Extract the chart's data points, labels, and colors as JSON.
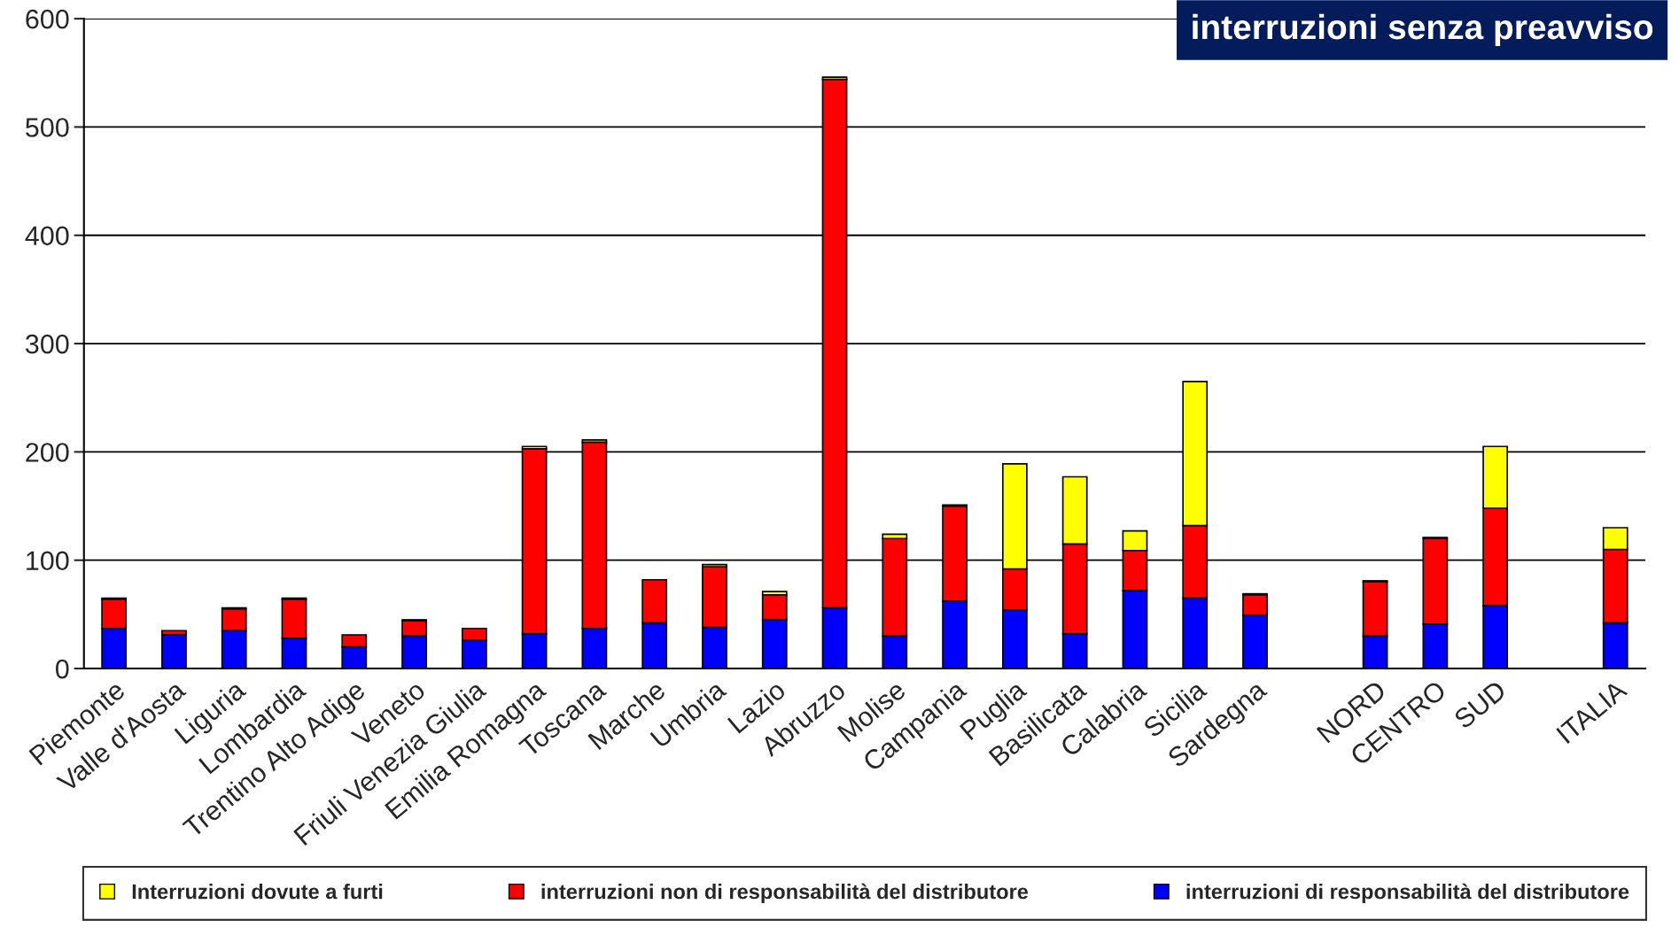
{
  "chart_data": {
    "type": "bar",
    "title": "interruzioni senza preavviso",
    "stacked": true,
    "categories": [
      "Piemonte",
      "Valle d'Aosta",
      "Liguria",
      "Lombardia",
      "Trentino Alto Adige",
      "Veneto",
      "Friuli Venezia Giulia",
      "Emilia Romagna",
      "Toscana",
      "Marche",
      "Umbria",
      "Lazio",
      "Abruzzo",
      "Molise",
      "Campania",
      "Puglia",
      "Basilicata",
      "Calabria",
      "Sicilia",
      "Sardegna",
      null,
      "NORD",
      "CENTRO",
      "SUD",
      null,
      "ITALIA"
    ],
    "series": [
      {
        "name": "interruzioni di responsabilità del distributore",
        "color": "#0000ff",
        "values": [
          37,
          31,
          35,
          28,
          20,
          30,
          26,
          32,
          37,
          42,
          38,
          45,
          56,
          30,
          62,
          54,
          32,
          72,
          65,
          49,
          null,
          30,
          41,
          58,
          null,
          42
        ]
      },
      {
        "name": "interruzioni non di responsabilità del distributore",
        "color": "#ff0000",
        "values": [
          27,
          4,
          20,
          36,
          11,
          14,
          11,
          171,
          172,
          40,
          56,
          23,
          488,
          90,
          88,
          38,
          83,
          37,
          67,
          19,
          null,
          50,
          79,
          90,
          null,
          68
        ]
      },
      {
        "name": "Interruzioni dovute a furti",
        "color": "#ffff00",
        "values": [
          1,
          null,
          1,
          1,
          null,
          1,
          null,
          2,
          2,
          null,
          2,
          3,
          2,
          4,
          1,
          97,
          62,
          18,
          133,
          1,
          null,
          1,
          1,
          57,
          null,
          20
        ]
      }
    ],
    "ylim": [
      0,
      600
    ],
    "yticks": [
      0,
      100,
      200,
      300,
      400,
      500,
      600
    ],
    "grid": "y",
    "legend": "bottom"
  }
}
